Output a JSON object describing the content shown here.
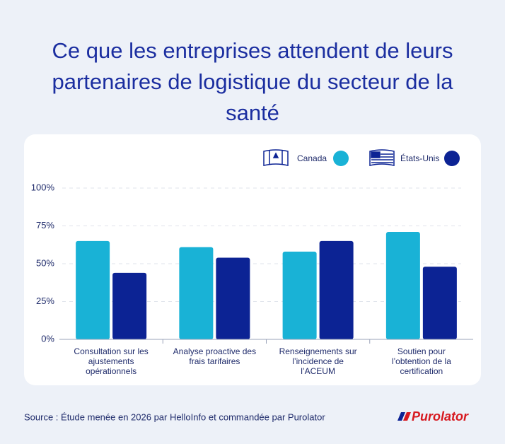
{
  "chart_data": {
    "type": "bar",
    "title": "Ce que les entreprises attendent de leurs partenaires de logistique du secteur de la santé",
    "categories": [
      "Consultation sur les ajustements opérationnels",
      "Analyse proactive des frais tarifaires",
      "Renseignements sur l’incidence de l’ACEUM",
      "Soutien pour l’obtention de la certification"
    ],
    "series": [
      {
        "name": "Canada",
        "color": "#19b2d6",
        "values": [
          65,
          61,
          58,
          71
        ]
      },
      {
        "name": "États-Unis",
        "color": "#0c2394",
        "values": [
          44,
          54,
          65,
          48
        ]
      }
    ],
    "ylim": [
      0,
      100
    ],
    "yticks": [
      {
        "value": 0,
        "label": "0%"
      },
      {
        "value": 25,
        "label": "25%"
      },
      {
        "value": 50,
        "label": "50%"
      },
      {
        "value": 75,
        "label": "75%"
      },
      {
        "value": 100,
        "label": "100%"
      }
    ],
    "grid": true
  },
  "footer": {
    "source": "Source : Étude menée en 2026 par HelloInfo et commandée par Purolator",
    "logo": "Purolator"
  }
}
